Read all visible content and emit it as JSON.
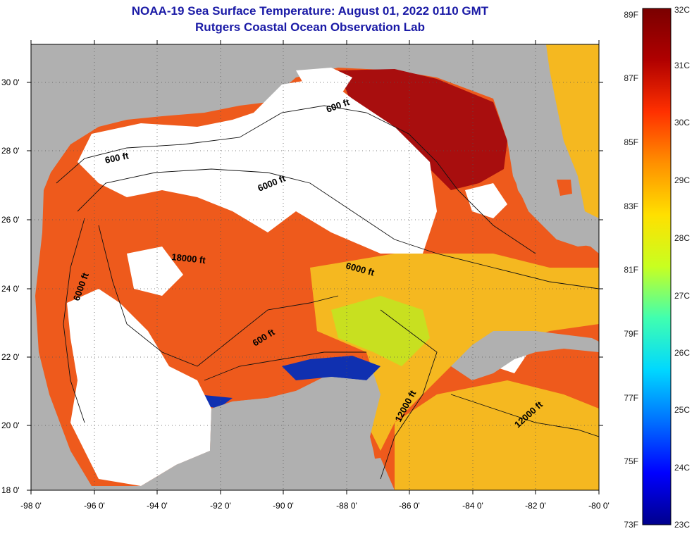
{
  "header": {
    "title": "NOAA-19 Sea Surface Temperature:  August 01, 2022 0110 GMT",
    "subtitle": "Rutgers Coastal Ocean Observation Lab"
  },
  "map": {
    "lat_labels": [
      "30 0'",
      "28 0'",
      "26 0'",
      "24 0'",
      "22 0'",
      "20 0'",
      "18 0'"
    ],
    "lon_labels": [
      "-98 0'",
      "-96 0'",
      "-94 0'",
      "-92 0'",
      "-90 0'",
      "-88 0'",
      "-86 0'",
      "-84 0'",
      "-82 0'",
      "-80 0'"
    ],
    "depth_labels": [
      "600 ft",
      "6000 ft",
      "600 ft",
      "6000 ft",
      "18000 ft",
      "6000 ft",
      "600 ft",
      "12000 ft",
      "12000 ft"
    ],
    "colors": {
      "land": "#b0b0b0",
      "cloud": "#ffffff",
      "hot": "#a80e0e",
      "warm": "#ee5a1c",
      "mid": "#f5b820",
      "cool": "#c8e020",
      "cold": "#1030b0"
    }
  },
  "colorbar": {
    "fahrenheit_labels": [
      "89F",
      "87F",
      "85F",
      "83F",
      "81F",
      "79F",
      "77F",
      "75F",
      "73F"
    ],
    "celsius_labels": [
      "32C",
      "31C",
      "30C",
      "29C",
      "28C",
      "27C",
      "26C",
      "25C",
      "24C",
      "23C"
    ],
    "stops": [
      "#00008c",
      "#0000ff",
      "#0070ff",
      "#00d8ff",
      "#40ffb0",
      "#c8ff20",
      "#ffe000",
      "#ff9000",
      "#ff3000",
      "#b00000",
      "#7a0000"
    ]
  }
}
